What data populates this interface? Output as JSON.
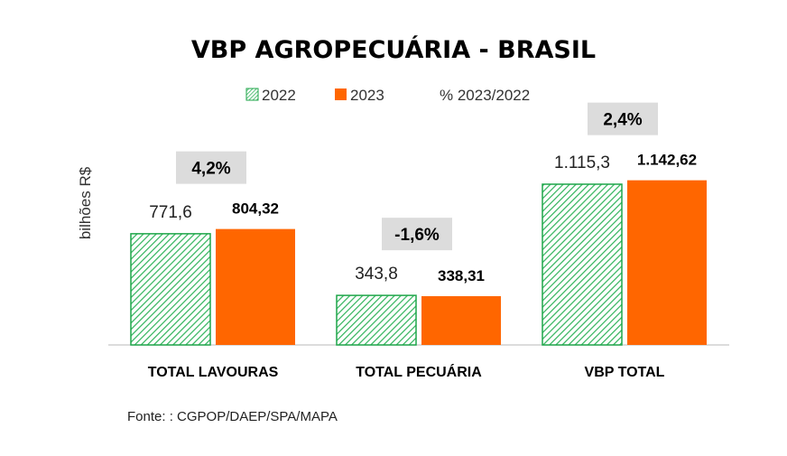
{
  "chart_data": {
    "type": "bar",
    "title": "VBP AGROPECUÁRIA - BRASIL",
    "ylabel": "bilhões R$",
    "categories": [
      "TOTAL LAVOURAS",
      "TOTAL PECUÁRIA",
      "VBP TOTAL"
    ],
    "series": [
      {
        "name": "2022",
        "values": [
          771.6,
          343.8,
          1115.3
        ],
        "labels": [
          "771,6",
          "343,8",
          "1.115,3"
        ],
        "color": "#1fa64a",
        "pattern": "hatched"
      },
      {
        "name": "2023",
        "values": [
          804.32,
          338.31,
          1142.62
        ],
        "labels": [
          "804,32",
          "338,31",
          "1.142,62"
        ],
        "color": "#ff6600"
      }
    ],
    "change_series": {
      "name": "% 2023/2022",
      "labels": [
        "4,2%",
        "-1,6%",
        "2,4%"
      ]
    },
    "ylim": [
      0,
      1500
    ],
    "grid": false,
    "legend_position": "top-center",
    "source": "Fonte: : CGPOP/DAEP/SPA/MAPA"
  }
}
